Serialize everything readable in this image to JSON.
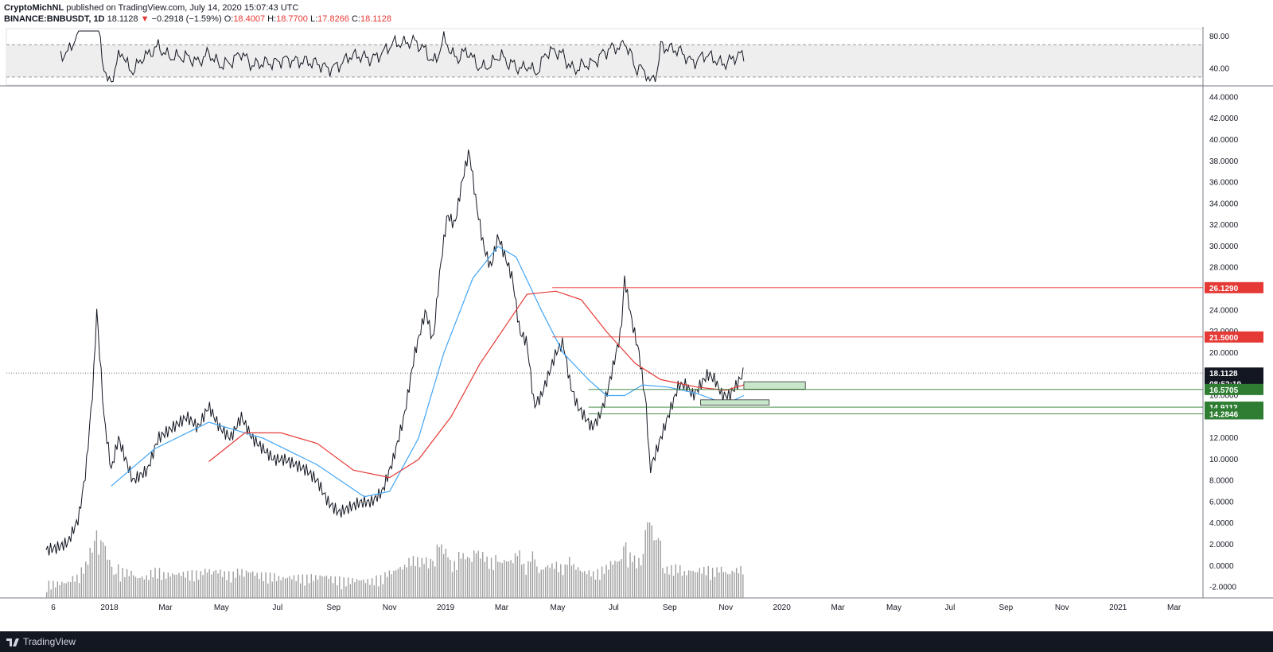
{
  "header": {
    "author": "CryptoMichNL",
    "published": "published on TradingView.com, July 14, 2020 15:07:43 UTC",
    "symbol": "BINANCE:BNBUSDT, 1D",
    "last": "18.1128",
    "change": "−0.2918 (−1.59%)",
    "open_label": "O:",
    "open": "18.4007",
    "high_label": "H:",
    "high": "18.7700",
    "low_label": "L:",
    "low": "17.8266",
    "close_label": "C:",
    "close": "18.1128"
  },
  "footer": {
    "brand": "TradingView"
  },
  "colors": {
    "up_down": "#e53935",
    "ma_fast": "#42a5f5",
    "ma_slow": "#e53935",
    "zone": "#c8e6c9",
    "tag_green": "#2e7d32",
    "tag_red": "#e53935",
    "tag_dark": "#131722"
  },
  "chart_data": {
    "type": "line",
    "price_axis": {
      "ylim": [
        -3,
        45
      ],
      "ticks": [
        "44.0000",
        "42.0000",
        "40.0000",
        "38.0000",
        "36.0000",
        "34.0000",
        "32.0000",
        "30.0000",
        "28.0000",
        "26.0000",
        "24.0000",
        "22.0000",
        "20.0000",
        "18.0000",
        "16.0000",
        "14.0000",
        "12.0000",
        "10.0000",
        "8.0000",
        "6.0000",
        "4.0000",
        "2.0000",
        "0.0000",
        "-2.0000"
      ]
    },
    "rsi_axis": {
      "ylim": [
        20,
        90
      ],
      "ticks": [
        "80.00",
        "40.00"
      ],
      "band": [
        30,
        70
      ]
    },
    "time_axis": [
      "6",
      "2018",
      "Mar",
      "May",
      "Jul",
      "Sep",
      "Nov",
      "2019",
      "Mar",
      "May",
      "Jul",
      "Sep",
      "Nov",
      "2020",
      "Mar",
      "May",
      "Jul",
      "Sep",
      "Nov",
      "2021",
      "Mar"
    ],
    "price_points": [
      [
        0,
        1.5
      ],
      [
        3,
        1.7
      ],
      [
        6,
        2.2
      ],
      [
        9,
        4.5
      ],
      [
        11,
        9
      ],
      [
        13,
        17
      ],
      [
        14,
        24
      ],
      [
        16,
        14
      ],
      [
        18,
        9
      ],
      [
        20,
        12
      ],
      [
        24,
        8
      ],
      [
        28,
        9
      ],
      [
        31,
        12
      ],
      [
        35,
        13
      ],
      [
        39,
        14
      ],
      [
        42,
        13
      ],
      [
        45,
        15
      ],
      [
        48,
        13
      ],
      [
        51,
        12
      ],
      [
        54,
        14
      ],
      [
        57,
        12
      ],
      [
        60,
        11
      ],
      [
        63,
        10
      ],
      [
        66,
        10
      ],
      [
        69,
        9.5
      ],
      [
        72,
        9
      ],
      [
        75,
        8
      ],
      [
        78,
        6
      ],
      [
        81,
        5
      ],
      [
        84,
        5.5
      ],
      [
        87,
        6
      ],
      [
        90,
        6
      ],
      [
        93,
        7
      ],
      [
        96,
        10
      ],
      [
        99,
        14
      ],
      [
        102,
        20
      ],
      [
        105,
        24
      ],
      [
        107,
        21
      ],
      [
        109,
        28
      ],
      [
        111,
        33
      ],
      [
        113,
        32
      ],
      [
        115,
        36
      ],
      [
        117,
        39
      ],
      [
        119,
        34
      ],
      [
        121,
        30
      ],
      [
        123,
        28
      ],
      [
        125,
        31
      ],
      [
        127,
        29
      ],
      [
        129,
        27
      ],
      [
        131,
        22
      ],
      [
        133,
        21
      ],
      [
        135,
        15
      ],
      [
        137,
        16
      ],
      [
        139,
        18
      ],
      [
        141,
        20
      ],
      [
        143,
        21
      ],
      [
        145,
        17
      ],
      [
        147,
        15
      ],
      [
        149,
        14
      ],
      [
        151,
        13
      ],
      [
        153,
        14
      ],
      [
        155,
        16
      ],
      [
        157,
        19
      ],
      [
        159,
        22
      ],
      [
        160,
        27
      ],
      [
        162,
        23
      ],
      [
        164,
        20
      ],
      [
        166,
        15
      ],
      [
        167,
        9
      ],
      [
        169,
        11
      ],
      [
        171,
        13
      ],
      [
        173,
        15
      ],
      [
        175,
        17
      ],
      [
        177,
        17
      ],
      [
        179,
        16
      ],
      [
        181,
        17
      ],
      [
        183,
        18
      ],
      [
        185,
        17.5
      ],
      [
        187,
        16
      ],
      [
        189,
        16
      ],
      [
        191,
        17
      ],
      [
        193,
        18.2
      ]
    ],
    "ma_fast_points": [
      [
        18,
        7.5
      ],
      [
        30,
        11
      ],
      [
        45,
        13.5
      ],
      [
        60,
        12
      ],
      [
        75,
        9.5
      ],
      [
        88,
        6.5
      ],
      [
        95,
        7
      ],
      [
        103,
        12
      ],
      [
        110,
        20
      ],
      [
        118,
        27
      ],
      [
        125,
        30
      ],
      [
        130,
        29
      ],
      [
        137,
        24
      ],
      [
        143,
        20
      ],
      [
        150,
        17.5
      ],
      [
        155,
        16
      ],
      [
        160,
        16
      ],
      [
        165,
        17
      ],
      [
        172,
        16.8
      ],
      [
        180,
        16.2
      ],
      [
        188,
        15.2
      ],
      [
        193,
        16
      ]
    ],
    "ma_slow_points": [
      [
        45,
        9.8
      ],
      [
        55,
        12.5
      ],
      [
        65,
        12.5
      ],
      [
        75,
        11.5
      ],
      [
        85,
        9
      ],
      [
        95,
        8.3
      ],
      [
        103,
        10
      ],
      [
        112,
        14
      ],
      [
        120,
        19
      ],
      [
        128,
        23
      ],
      [
        133,
        25.5
      ],
      [
        141,
        25.8
      ],
      [
        148,
        25
      ],
      [
        155,
        22
      ],
      [
        163,
        19
      ],
      [
        170,
        17.5
      ],
      [
        180,
        16.8
      ],
      [
        188,
        16.5
      ],
      [
        193,
        17
      ]
    ],
    "levels": [
      {
        "label": "26.1290",
        "value": 26.129,
        "color": "red"
      },
      {
        "label": "21.5000",
        "value": 21.5,
        "color": "red"
      },
      {
        "label": "18.1128",
        "value": 18.1128,
        "color": "dark"
      },
      {
        "label": "08:52:19",
        "value": 17.1,
        "color": "dark"
      },
      {
        "label": "16.5705",
        "value": 16.5705,
        "color": "green"
      },
      {
        "label": "14.9112",
        "value": 14.9112,
        "color": "green"
      },
      {
        "label": "14.2846",
        "value": 14.2846,
        "color": "green"
      }
    ],
    "zones": [
      {
        "x0": 193,
        "x1": 210,
        "y0": 16.6,
        "y1": 17.3
      },
      {
        "x0": 181,
        "x1": 200,
        "y0": 15.1,
        "y1": 15.6
      }
    ]
  }
}
